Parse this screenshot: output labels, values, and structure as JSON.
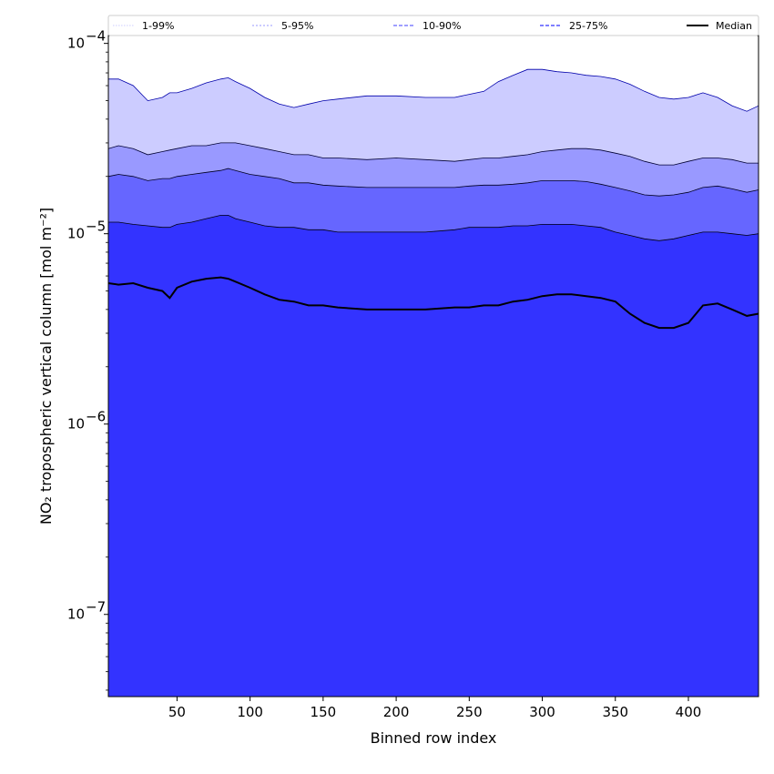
{
  "chart_data": {
    "type": "area",
    "xlabel": "Binned row index",
    "ylabel": "NO₂ tropospheric vertical column [mol m⁻²]",
    "y_scale": "log",
    "xlim": [
      3,
      448
    ],
    "ylim": [
      3.7e-08,
      0.00011
    ],
    "x_ticks": [
      50,
      100,
      150,
      200,
      250,
      300,
      350,
      400
    ],
    "y_ticks": [
      {
        "value": 1e-07,
        "base": "10",
        "exp": "−7"
      },
      {
        "value": 1e-06,
        "base": "10",
        "exp": "−6"
      },
      {
        "value": 1e-05,
        "base": "10",
        "exp": "−5"
      },
      {
        "value": 0.0001,
        "base": "10",
        "exp": "−4"
      }
    ],
    "legend_position": "top, above plot",
    "legend": [
      "1-99%",
      "5-95%",
      "10-90%",
      "25-75%",
      "Median"
    ],
    "x": [
      3,
      10,
      20,
      30,
      40,
      45,
      50,
      60,
      70,
      80,
      85,
      90,
      100,
      110,
      120,
      130,
      140,
      150,
      160,
      180,
      200,
      220,
      240,
      250,
      260,
      270,
      280,
      290,
      300,
      310,
      320,
      330,
      340,
      350,
      360,
      370,
      380,
      390,
      400,
      410,
      420,
      430,
      440,
      448
    ],
    "series": [
      {
        "name": "1-99%",
        "color": "#ccccff",
        "low": [
          3.7e-08,
          6e-07,
          4e-07,
          5e-07,
          3e-07,
          3.7e-08,
          7e-07,
          9e-07,
          8e-07,
          1e-06,
          9e-07,
          5e-07,
          3.7e-08,
          3.7e-08,
          3.7e-08,
          3.7e-08,
          3.7e-08,
          3.7e-08,
          3.7e-08,
          3.7e-08,
          3.7e-08,
          3.7e-08,
          3.7e-08,
          3.7e-08,
          3.7e-08,
          3.7e-08,
          3.7e-08,
          3.7e-08,
          3.7e-08,
          3.7e-08,
          3.7e-08,
          3.7e-08,
          3.7e-08,
          3.7e-08,
          3.7e-08,
          3.7e-08,
          3.7e-08,
          3.7e-08,
          3.7e-08,
          3.7e-08,
          3.7e-08,
          3.7e-08,
          3.7e-08,
          3.7e-08
        ],
        "high": [
          6.5e-05,
          6.5e-05,
          6e-05,
          5e-05,
          5.2e-05,
          5.5e-05,
          5.5e-05,
          5.8e-05,
          6.2e-05,
          6.5e-05,
          6.6e-05,
          6.3e-05,
          5.8e-05,
          5.2e-05,
          4.8e-05,
          4.6e-05,
          4.8e-05,
          5e-05,
          5.1e-05,
          5.3e-05,
          5.3e-05,
          5.2e-05,
          5.2e-05,
          5.4e-05,
          5.6e-05,
          6.3e-05,
          6.8e-05,
          7.3e-05,
          7.3e-05,
          7.1e-05,
          7e-05,
          6.8e-05,
          6.7e-05,
          6.5e-05,
          6.1e-05,
          5.6e-05,
          5.2e-05,
          5.1e-05,
          5.2e-05,
          5.5e-05,
          5.2e-05,
          4.7e-05,
          4.4e-05,
          4.7e-05
        ]
      },
      {
        "name": "5-95%",
        "color": "#9999ff",
        "low": [
          1e-05,
          1e-05,
          1e-05,
          1e-05,
          1e-05,
          1e-05,
          1e-05,
          1e-05,
          1e-05,
          1e-05,
          1e-05,
          1e-05,
          1e-05,
          1e-05,
          1e-05,
          1e-05,
          1e-05,
          1e-05,
          1e-05,
          1e-05,
          1e-05,
          1e-05,
          1e-05,
          1e-05,
          1e-05,
          1e-05,
          1e-05,
          1e-05,
          1e-05,
          1e-05,
          1e-05,
          1e-05,
          1e-05,
          1e-05,
          1e-05,
          1e-05,
          1e-05,
          1e-05,
          1e-05,
          1e-05,
          1e-05,
          1e-05,
          1e-05,
          1e-05
        ],
        "high": [
          2.8e-05,
          2.9e-05,
          2.8e-05,
          2.6e-05,
          2.7e-05,
          2.75e-05,
          2.8e-05,
          2.9e-05,
          2.9e-05,
          3e-05,
          3e-05,
          3e-05,
          2.9e-05,
          2.8e-05,
          2.7e-05,
          2.6e-05,
          2.6e-05,
          2.5e-05,
          2.5e-05,
          2.45e-05,
          2.5e-05,
          2.45e-05,
          2.4e-05,
          2.45e-05,
          2.5e-05,
          2.5e-05,
          2.55e-05,
          2.6e-05,
          2.7e-05,
          2.75e-05,
          2.8e-05,
          2.8e-05,
          2.75e-05,
          2.65e-05,
          2.55e-05,
          2.4e-05,
          2.3e-05,
          2.3e-05,
          2.4e-05,
          2.5e-05,
          2.5e-05,
          2.45e-05,
          2.35e-05,
          2.35e-05
        ]
      },
      {
        "name": "10-90%",
        "color": "#6666ff",
        "low": [
          1.1e-05,
          1.1e-05,
          1.1e-05,
          1.1e-05,
          1.05e-05,
          1.05e-05,
          1.1e-05,
          1.1e-05,
          1.15e-05,
          1.2e-05,
          1.2e-05,
          1.15e-05,
          1.1e-05,
          1.08e-05,
          1.05e-05,
          1.05e-05,
          1.02e-05,
          1.02e-05,
          1e-05,
          1e-05,
          1e-05,
          1e-05,
          1.02e-05,
          1.05e-05,
          1.05e-05,
          1.05e-05,
          1.07e-05,
          1.08e-05,
          1.1e-05,
          1.1e-05,
          1.1e-05,
          1.08e-05,
          1.05e-05,
          1e-05,
          9.5e-06,
          9.2e-06,
          9e-06,
          9.2e-06,
          9.5e-06,
          1e-05,
          1e-05,
          9.8e-06,
          9.6e-06,
          9.8e-06
        ],
        "high": [
          2e-05,
          2.05e-05,
          2e-05,
          1.9e-05,
          1.95e-05,
          1.95e-05,
          2e-05,
          2.05e-05,
          2.1e-05,
          2.15e-05,
          2.2e-05,
          2.15e-05,
          2.05e-05,
          2e-05,
          1.95e-05,
          1.85e-05,
          1.85e-05,
          1.8e-05,
          1.78e-05,
          1.75e-05,
          1.75e-05,
          1.75e-05,
          1.75e-05,
          1.78e-05,
          1.8e-05,
          1.8e-05,
          1.82e-05,
          1.85e-05,
          1.9e-05,
          1.9e-05,
          1.9e-05,
          1.88e-05,
          1.82e-05,
          1.75e-05,
          1.68e-05,
          1.6e-05,
          1.58e-05,
          1.6e-05,
          1.65e-05,
          1.75e-05,
          1.78e-05,
          1.72e-05,
          1.65e-05,
          1.7e-05
        ]
      },
      {
        "name": "25-75%",
        "color": "#3333ff",
        "low": [
          3.7e-08,
          3.7e-08,
          3.7e-08,
          3.7e-08,
          3.7e-08,
          3.7e-08,
          3.7e-08,
          3.7e-08,
          3.7e-08,
          3.7e-08,
          3.7e-08,
          3.7e-08,
          3.7e-08,
          3.7e-08,
          3.7e-08,
          3.7e-08,
          3.7e-08,
          3.7e-08,
          3.7e-08,
          3.7e-08,
          3.7e-08,
          3.7e-08,
          3.7e-08,
          3.7e-08,
          3.7e-08,
          3.7e-08,
          3.7e-08,
          3.7e-08,
          3.7e-08,
          3.7e-08,
          3.7e-08,
          3.7e-08,
          3.7e-08,
          3.7e-08,
          3.7e-08,
          3.7e-08,
          3.7e-08,
          3.7e-08,
          3.7e-08,
          3.7e-08,
          3.7e-08,
          3.7e-08,
          3.7e-08,
          3.7e-08
        ],
        "high": [
          1.15e-05,
          1.15e-05,
          1.12e-05,
          1.1e-05,
          1.08e-05,
          1.08e-05,
          1.12e-05,
          1.15e-05,
          1.2e-05,
          1.25e-05,
          1.25e-05,
          1.2e-05,
          1.15e-05,
          1.1e-05,
          1.08e-05,
          1.08e-05,
          1.05e-05,
          1.05e-05,
          1.02e-05,
          1.02e-05,
          1.02e-05,
          1.02e-05,
          1.05e-05,
          1.08e-05,
          1.08e-05,
          1.08e-05,
          1.1e-05,
          1.1e-05,
          1.12e-05,
          1.12e-05,
          1.12e-05,
          1.1e-05,
          1.08e-05,
          1.02e-05,
          9.8e-06,
          9.4e-06,
          9.2e-06,
          9.4e-06,
          9.8e-06,
          1.02e-05,
          1.02e-05,
          1e-05,
          9.8e-06,
          1e-05
        ]
      },
      {
        "name": "Median",
        "color": "#000000",
        "values": [
          5.5e-06,
          5.4e-06,
          5.5e-06,
          5.2e-06,
          5e-06,
          4.6e-06,
          5.2e-06,
          5.6e-06,
          5.8e-06,
          5.9e-06,
          5.8e-06,
          5.6e-06,
          5.2e-06,
          4.8e-06,
          4.5e-06,
          4.4e-06,
          4.2e-06,
          4.2e-06,
          4.1e-06,
          4e-06,
          4e-06,
          4e-06,
          4.1e-06,
          4.1e-06,
          4.2e-06,
          4.2e-06,
          4.4e-06,
          4.5e-06,
          4.7e-06,
          4.8e-06,
          4.8e-06,
          4.7e-06,
          4.6e-06,
          4.4e-06,
          3.8e-06,
          3.4e-06,
          3.2e-06,
          3.2e-06,
          3.4e-06,
          4.2e-06,
          4.3e-06,
          4e-06,
          3.7e-06,
          3.8e-06
        ]
      }
    ]
  }
}
